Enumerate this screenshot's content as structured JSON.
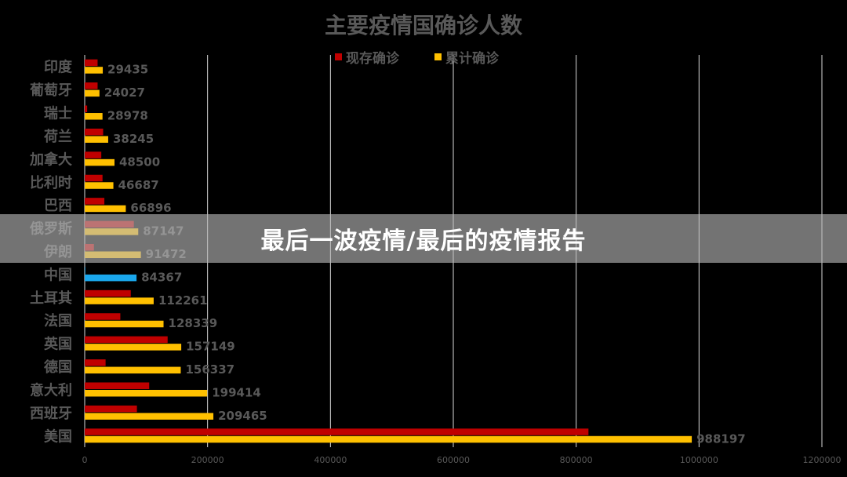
{
  "chart_data": {
    "type": "bar",
    "orientation": "horizontal",
    "title": "主要疫情国确诊人数",
    "categories": [
      "印度",
      "葡萄牙",
      "瑞士",
      "荷兰",
      "加拿大",
      "比利时",
      "巴西",
      "俄罗斯",
      "伊朗",
      "中国",
      "土耳其",
      "法国",
      "英国",
      "德国",
      "意大利",
      "西班牙",
      "美国"
    ],
    "series": [
      {
        "name": "现存确诊",
        "color": "#c00000",
        "values": [
          21000,
          21000,
          4000,
          30000,
          27000,
          29000,
          32000,
          80000,
          15000,
          1000,
          75000,
          58000,
          135000,
          34000,
          105000,
          85000,
          820000
        ]
      },
      {
        "name": "累计确诊",
        "color": "#ffc000",
        "values": [
          29435,
          24027,
          28978,
          38245,
          48500,
          46687,
          66896,
          87147,
          91472,
          84367,
          112261,
          128339,
          157149,
          156337,
          199414,
          209465,
          988197
        ]
      }
    ],
    "data_labels": [
      "29435",
      "24027",
      "28978",
      "38245",
      "48500",
      "46687",
      "66896",
      "87147",
      "91472",
      "84367",
      "112261",
      "128339",
      "157149",
      "156337",
      "199414",
      "209465",
      "988197"
    ],
    "highlight": {
      "category": "中国",
      "color": "#1aa7ec"
    },
    "xlim": [
      0,
      1200000
    ],
    "x_ticks": [
      "0",
      "200000",
      "400000",
      "600000",
      "800000",
      "1000000",
      "1200000"
    ],
    "grid": "vertical",
    "legend_position": "top"
  },
  "banner": {
    "text": "最后一波疫情/最后的疫情报告"
  }
}
